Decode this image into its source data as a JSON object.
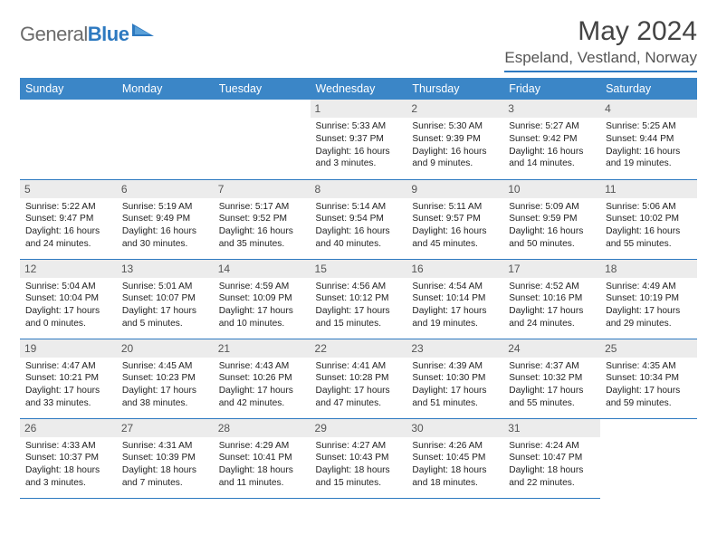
{
  "brand": {
    "part1": "General",
    "part2": "Blue"
  },
  "title": "May 2024",
  "location": "Espeland, Vestland, Norway",
  "colors": {
    "header_bg": "#3b86c7",
    "accent": "#2d79c0",
    "daynum_bg": "#ececec",
    "logo_gray": "#6b6b6b"
  },
  "days_of_week": [
    "Sunday",
    "Monday",
    "Tuesday",
    "Wednesday",
    "Thursday",
    "Friday",
    "Saturday"
  ],
  "weeks": [
    [
      {
        "blank": true
      },
      {
        "blank": true
      },
      {
        "blank": true
      },
      {
        "n": "1",
        "sunrise": "5:33 AM",
        "sunset": "9:37 PM",
        "dl": "16 hours and 3 minutes."
      },
      {
        "n": "2",
        "sunrise": "5:30 AM",
        "sunset": "9:39 PM",
        "dl": "16 hours and 9 minutes."
      },
      {
        "n": "3",
        "sunrise": "5:27 AM",
        "sunset": "9:42 PM",
        "dl": "16 hours and 14 minutes."
      },
      {
        "n": "4",
        "sunrise": "5:25 AM",
        "sunset": "9:44 PM",
        "dl": "16 hours and 19 minutes."
      }
    ],
    [
      {
        "n": "5",
        "sunrise": "5:22 AM",
        "sunset": "9:47 PM",
        "dl": "16 hours and 24 minutes."
      },
      {
        "n": "6",
        "sunrise": "5:19 AM",
        "sunset": "9:49 PM",
        "dl": "16 hours and 30 minutes."
      },
      {
        "n": "7",
        "sunrise": "5:17 AM",
        "sunset": "9:52 PM",
        "dl": "16 hours and 35 minutes."
      },
      {
        "n": "8",
        "sunrise": "5:14 AM",
        "sunset": "9:54 PM",
        "dl": "16 hours and 40 minutes."
      },
      {
        "n": "9",
        "sunrise": "5:11 AM",
        "sunset": "9:57 PM",
        "dl": "16 hours and 45 minutes."
      },
      {
        "n": "10",
        "sunrise": "5:09 AM",
        "sunset": "9:59 PM",
        "dl": "16 hours and 50 minutes."
      },
      {
        "n": "11",
        "sunrise": "5:06 AM",
        "sunset": "10:02 PM",
        "dl": "16 hours and 55 minutes."
      }
    ],
    [
      {
        "n": "12",
        "sunrise": "5:04 AM",
        "sunset": "10:04 PM",
        "dl": "17 hours and 0 minutes."
      },
      {
        "n": "13",
        "sunrise": "5:01 AM",
        "sunset": "10:07 PM",
        "dl": "17 hours and 5 minutes."
      },
      {
        "n": "14",
        "sunrise": "4:59 AM",
        "sunset": "10:09 PM",
        "dl": "17 hours and 10 minutes."
      },
      {
        "n": "15",
        "sunrise": "4:56 AM",
        "sunset": "10:12 PM",
        "dl": "17 hours and 15 minutes."
      },
      {
        "n": "16",
        "sunrise": "4:54 AM",
        "sunset": "10:14 PM",
        "dl": "17 hours and 19 minutes."
      },
      {
        "n": "17",
        "sunrise": "4:52 AM",
        "sunset": "10:16 PM",
        "dl": "17 hours and 24 minutes."
      },
      {
        "n": "18",
        "sunrise": "4:49 AM",
        "sunset": "10:19 PM",
        "dl": "17 hours and 29 minutes."
      }
    ],
    [
      {
        "n": "19",
        "sunrise": "4:47 AM",
        "sunset": "10:21 PM",
        "dl": "17 hours and 33 minutes."
      },
      {
        "n": "20",
        "sunrise": "4:45 AM",
        "sunset": "10:23 PM",
        "dl": "17 hours and 38 minutes."
      },
      {
        "n": "21",
        "sunrise": "4:43 AM",
        "sunset": "10:26 PM",
        "dl": "17 hours and 42 minutes."
      },
      {
        "n": "22",
        "sunrise": "4:41 AM",
        "sunset": "10:28 PM",
        "dl": "17 hours and 47 minutes."
      },
      {
        "n": "23",
        "sunrise": "4:39 AM",
        "sunset": "10:30 PM",
        "dl": "17 hours and 51 minutes."
      },
      {
        "n": "24",
        "sunrise": "4:37 AM",
        "sunset": "10:32 PM",
        "dl": "17 hours and 55 minutes."
      },
      {
        "n": "25",
        "sunrise": "4:35 AM",
        "sunset": "10:34 PM",
        "dl": "17 hours and 59 minutes."
      }
    ],
    [
      {
        "n": "26",
        "sunrise": "4:33 AM",
        "sunset": "10:37 PM",
        "dl": "18 hours and 3 minutes."
      },
      {
        "n": "27",
        "sunrise": "4:31 AM",
        "sunset": "10:39 PM",
        "dl": "18 hours and 7 minutes."
      },
      {
        "n": "28",
        "sunrise": "4:29 AM",
        "sunset": "10:41 PM",
        "dl": "18 hours and 11 minutes."
      },
      {
        "n": "29",
        "sunrise": "4:27 AM",
        "sunset": "10:43 PM",
        "dl": "18 hours and 15 minutes."
      },
      {
        "n": "30",
        "sunrise": "4:26 AM",
        "sunset": "10:45 PM",
        "dl": "18 hours and 18 minutes."
      },
      {
        "n": "31",
        "sunrise": "4:24 AM",
        "sunset": "10:47 PM",
        "dl": "18 hours and 22 minutes."
      },
      {
        "blank": true
      }
    ]
  ],
  "labels": {
    "sunrise": "Sunrise:",
    "sunset": "Sunset:",
    "daylight": "Daylight:"
  }
}
